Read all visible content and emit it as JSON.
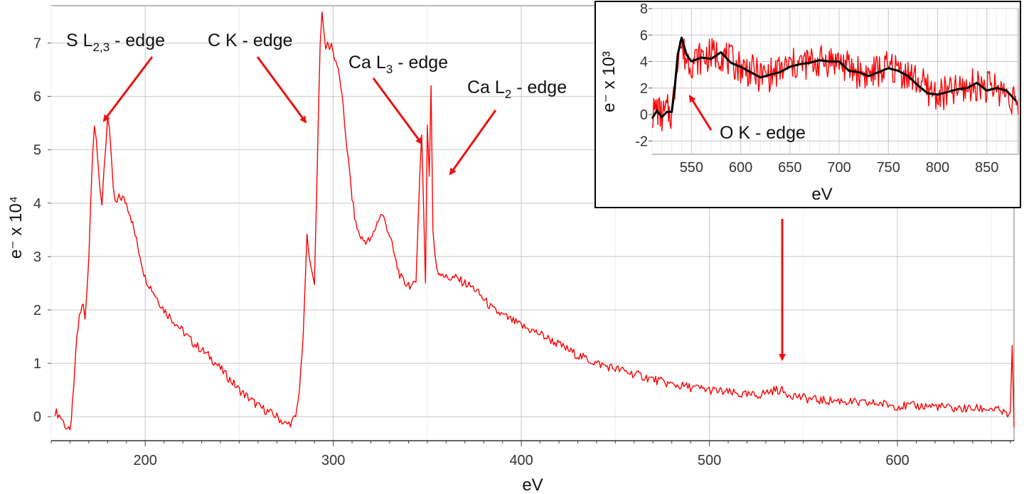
{
  "chart_data": [
    {
      "type": "line",
      "title": "",
      "xlabel": "eV",
      "ylabel": "e⁻ x 10⁴",
      "xlim": [
        150,
        662
      ],
      "ylim": [
        -0.45,
        7.7
      ],
      "x_ticks": [
        200,
        300,
        400,
        500,
        600
      ],
      "y_ticks": [
        0,
        1,
        2,
        3,
        4,
        5,
        6,
        7
      ],
      "grid": true,
      "series": [
        {
          "color": "#ff0000",
          "x": [
            152,
            155,
            158,
            160,
            162,
            163,
            165,
            167,
            168,
            170,
            171,
            172,
            173,
            174,
            175,
            176,
            177,
            178,
            179,
            180,
            181,
            182,
            183,
            184,
            185,
            186,
            188,
            190,
            192,
            194,
            196,
            198,
            200,
            205,
            210,
            215,
            220,
            225,
            230,
            235,
            240,
            245,
            250,
            255,
            260,
            265,
            270,
            275,
            278,
            280,
            282,
            284,
            286,
            288,
            290,
            292,
            293,
            294,
            295,
            296,
            297,
            298,
            299,
            300,
            302,
            304,
            306,
            308,
            310,
            312,
            314,
            316,
            318,
            320,
            322,
            324,
            326,
            328,
            330,
            332,
            334,
            336,
            338,
            340,
            342,
            344,
            346,
            347,
            348,
            349,
            350,
            351,
            352,
            353,
            354,
            355,
            356,
            358,
            360,
            365,
            370,
            375,
            380,
            385,
            390,
            395,
            400,
            410,
            420,
            430,
            440,
            450,
            460,
            470,
            480,
            490,
            500,
            510,
            520,
            525,
            530,
            535,
            538,
            540,
            545,
            550,
            560,
            570,
            580,
            590,
            600,
            610,
            620,
            630,
            640,
            650,
            655,
            660,
            661,
            662
          ],
          "y": [
            0.1,
            0.0,
            -0.2,
            -0.3,
            0.5,
            1.2,
            1.9,
            2.1,
            1.8,
            3.0,
            4.0,
            5.0,
            5.5,
            5.2,
            4.6,
            4.2,
            4.0,
            4.6,
            5.1,
            5.6,
            5.3,
            4.8,
            4.3,
            4.0,
            4.0,
            4.1,
            4.1,
            4.0,
            3.8,
            3.5,
            3.2,
            2.9,
            2.6,
            2.3,
            2.0,
            1.8,
            1.6,
            1.4,
            1.25,
            1.1,
            0.9,
            0.7,
            0.5,
            0.35,
            0.2,
            0.1,
            0.0,
            -0.15,
            -0.1,
            0.0,
            0.5,
            1.5,
            3.4,
            2.8,
            2.5,
            5.5,
            7.0,
            7.55,
            7.2,
            6.9,
            7.0,
            6.9,
            7.0,
            6.8,
            6.6,
            6.2,
            5.5,
            4.8,
            4.1,
            3.6,
            3.4,
            3.3,
            3.3,
            3.3,
            3.5,
            3.7,
            3.8,
            3.6,
            3.4,
            3.1,
            2.8,
            2.6,
            2.5,
            2.5,
            2.4,
            2.6,
            4.5,
            5.3,
            4.0,
            2.5,
            5.5,
            4.5,
            6.2,
            3.5,
            3.0,
            2.8,
            2.7,
            2.7,
            2.6,
            2.6,
            2.5,
            2.4,
            2.2,
            2.0,
            1.9,
            1.8,
            1.7,
            1.55,
            1.35,
            1.15,
            1.0,
            0.9,
            0.8,
            0.7,
            0.6,
            0.55,
            0.5,
            0.45,
            0.4,
            0.4,
            0.45,
            0.5,
            0.5,
            0.45,
            0.4,
            0.35,
            0.3,
            0.3,
            0.25,
            0.25,
            0.2,
            0.2,
            0.2,
            0.15,
            0.15,
            0.15,
            0.1,
            0.0,
            1.4,
            -0.2
          ]
        }
      ],
      "annotations": [
        {
          "text": "S L",
          "sub": "2,3",
          "tail": " - edge",
          "target": [
            175,
            5.55
          ]
        },
        {
          "text": "C K - edge",
          "tail": "",
          "target": [
            286,
            5.55
          ]
        },
        {
          "text": "Ca L",
          "sub": "3",
          "tail": " - edge",
          "target": [
            349,
            5.1
          ]
        },
        {
          "text": "Ca L",
          "sub": "2",
          "tail": " - edge",
          "target": [
            355,
            4.5
          ]
        },
        {
          "text": "",
          "tail": "",
          "target": [
            538,
            0.95
          ]
        }
      ]
    },
    {
      "type": "line",
      "title": "",
      "xlabel": "eV",
      "ylabel": "e⁻ x 10³",
      "xlim": [
        510,
        882
      ],
      "ylim": [
        -3,
        8
      ],
      "x_ticks": [
        550,
        600,
        650,
        700,
        750,
        800,
        850
      ],
      "y_ticks": [
        -2,
        0,
        2,
        4,
        6,
        8
      ],
      "grid": true,
      "series": [
        {
          "color": "#ff0000",
          "x": [
            510,
            515,
            520,
            525,
            530,
            533,
            536,
            538,
            540,
            545,
            550,
            560,
            570,
            580,
            590,
            600,
            610,
            620,
            630,
            640,
            650,
            660,
            670,
            680,
            690,
            700,
            710,
            720,
            730,
            740,
            750,
            760,
            770,
            780,
            790,
            800,
            810,
            820,
            830,
            840,
            850,
            860,
            870,
            880,
            882
          ],
          "y": [
            0.0,
            0.5,
            -0.2,
            0.3,
            0.0,
            2.0,
            4.5,
            5.5,
            5.0,
            4.2,
            4.0,
            4.3,
            4.5,
            4.6,
            4.0,
            3.6,
            3.3,
            2.9,
            3.0,
            3.3,
            3.7,
            3.8,
            3.9,
            4.0,
            4.1,
            4.0,
            3.5,
            3.2,
            3.0,
            3.3,
            3.5,
            3.4,
            3.0,
            2.5,
            1.9,
            1.5,
            1.6,
            1.8,
            2.0,
            2.3,
            2.1,
            2.0,
            1.6,
            1.1,
            0.0
          ]
        },
        {
          "color": "#000000",
          "x": [
            510,
            515,
            520,
            525,
            530,
            533,
            536,
            540,
            545,
            550,
            560,
            570,
            580,
            590,
            600,
            610,
            620,
            630,
            640,
            650,
            660,
            670,
            680,
            690,
            700,
            710,
            720,
            730,
            740,
            750,
            760,
            770,
            780,
            790,
            800,
            810,
            820,
            830,
            840,
            850,
            860,
            870,
            880
          ],
          "y": [
            -0.3,
            0.3,
            -0.2,
            0.2,
            0.2,
            2.0,
            4.5,
            5.8,
            4.5,
            4.0,
            4.3,
            4.2,
            4.7,
            3.9,
            3.6,
            3.2,
            2.8,
            3.0,
            3.2,
            3.6,
            3.8,
            3.9,
            4.1,
            4.0,
            4.0,
            3.3,
            3.2,
            2.9,
            3.2,
            3.5,
            3.3,
            2.9,
            2.2,
            1.6,
            1.5,
            1.7,
            1.9,
            2.0,
            2.4,
            1.8,
            2.0,
            1.8,
            1.0
          ]
        }
      ],
      "annotations": [
        {
          "text": "O K - edge",
          "tail": "",
          "target": [
            542,
            2.4
          ]
        }
      ]
    }
  ]
}
